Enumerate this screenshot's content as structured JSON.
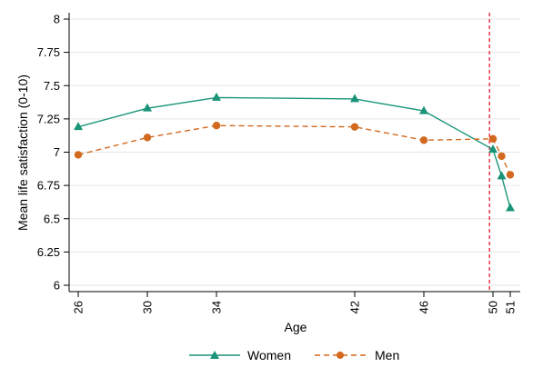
{
  "chart_data": {
    "type": "line",
    "xlabel": "Age",
    "ylabel": "Mean life satisfaction (0-10)",
    "x": [
      26,
      30,
      34,
      42,
      46,
      50,
      50.5,
      51
    ],
    "x_ticks": [
      "26",
      "30",
      "34",
      "42",
      "46",
      "50",
      "51"
    ],
    "x_tick_values": [
      26,
      30,
      34,
      42,
      46,
      50,
      51
    ],
    "ylim": [
      6,
      8
    ],
    "y_ticks": [
      "6",
      "6.25",
      "6.5",
      "6.75",
      "7",
      "7.25",
      "7.5",
      "7.75",
      "8"
    ],
    "y_tick_values": [
      6,
      6.25,
      6.5,
      6.75,
      7,
      7.25,
      7.5,
      7.75,
      8
    ],
    "reference_line": {
      "x": 49.8,
      "color": "#e8283c",
      "style": "dashed"
    },
    "grid": "horizontal",
    "legend_position": "bottom",
    "series": [
      {
        "name": "Women",
        "color": "#1a9478",
        "marker": "triangle",
        "line_style": "solid",
        "values": [
          7.19,
          7.33,
          7.41,
          7.4,
          7.31,
          7.02,
          6.82,
          6.58
        ]
      },
      {
        "name": "Men",
        "color": "#d2691e",
        "marker": "circle",
        "line_style": "dashed",
        "values": [
          6.98,
          7.11,
          7.2,
          7.19,
          7.09,
          7.1,
          6.97,
          6.83
        ]
      }
    ]
  }
}
